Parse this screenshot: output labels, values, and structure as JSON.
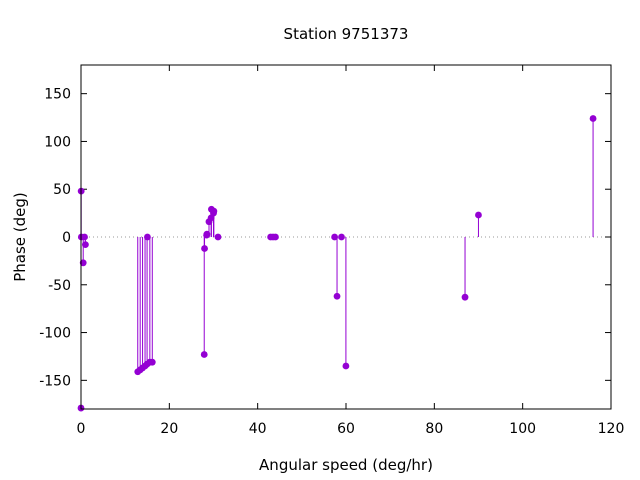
{
  "chart_data": {
    "type": "scatter",
    "style": "stem (impulses) with point markers",
    "title": "Station 9751373",
    "xlabel": "Angular speed (deg/hr)",
    "ylabel": "Phase (deg)",
    "xlim": [
      0,
      120
    ],
    "ylim": [
      -180,
      180
    ],
    "xticks": [
      0,
      20,
      40,
      60,
      80,
      100,
      120
    ],
    "yticks": [
      -150,
      -100,
      -50,
      0,
      50,
      100,
      150
    ],
    "grid": false,
    "zero_line": "dotted",
    "color": "#9400d3",
    "points": [
      {
        "x": 0.0,
        "y": -179
      },
      {
        "x": 0.04,
        "y": 48
      },
      {
        "x": 0.08,
        "y": 0
      },
      {
        "x": 0.5,
        "y": -27
      },
      {
        "x": 0.8,
        "y": 0
      },
      {
        "x": 1.0,
        "y": -8
      },
      {
        "x": 12.85,
        "y": -141
      },
      {
        "x": 13.4,
        "y": -139
      },
      {
        "x": 13.94,
        "y": -137
      },
      {
        "x": 14.5,
        "y": -135
      },
      {
        "x": 14.96,
        "y": -133
      },
      {
        "x": 15.04,
        "y": 0
      },
      {
        "x": 15.59,
        "y": -131
      },
      {
        "x": 16.14,
        "y": -131
      },
      {
        "x": 27.9,
        "y": -123
      },
      {
        "x": 27.97,
        "y": -12
      },
      {
        "x": 28.44,
        "y": 2
      },
      {
        "x": 28.51,
        "y": 3
      },
      {
        "x": 28.98,
        "y": 16
      },
      {
        "x": 29.46,
        "y": 20
      },
      {
        "x": 29.53,
        "y": 29
      },
      {
        "x": 30.0,
        "y": 25
      },
      {
        "x": 30.08,
        "y": 27
      },
      {
        "x": 31.02,
        "y": 0
      },
      {
        "x": 42.93,
        "y": 0
      },
      {
        "x": 43.48,
        "y": 0
      },
      {
        "x": 44.03,
        "y": 0
      },
      {
        "x": 57.42,
        "y": 0
      },
      {
        "x": 57.97,
        "y": -62
      },
      {
        "x": 58.98,
        "y": 0
      },
      {
        "x": 59.98,
        "y": -135
      },
      {
        "x": 86.95,
        "y": -63
      },
      {
        "x": 89.99,
        "y": 23
      },
      {
        "x": 115.94,
        "y": 124
      }
    ]
  }
}
